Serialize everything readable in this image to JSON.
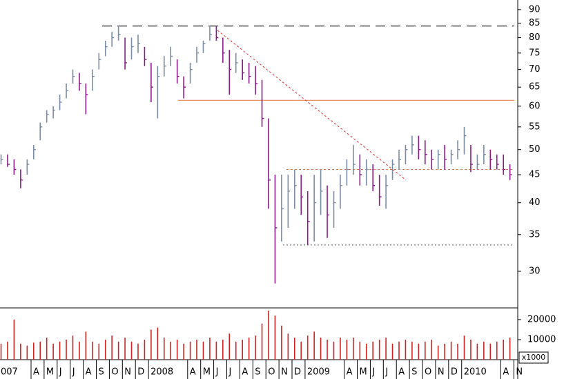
{
  "chart_data": {
    "type": "ohlc",
    "log_scale": true,
    "x": [
      0.7,
      1.2,
      1.7,
      2.2,
      2.7,
      3.2,
      3.7,
      4.2,
      4.7,
      5.2,
      5.7,
      6.2,
      6.7,
      7.2,
      7.7,
      8.2,
      8.7,
      9.2,
      9.7,
      10.2,
      10.7,
      11.2,
      11.7,
      12.2,
      12.7,
      13.2,
      13.7,
      14.2,
      14.7,
      15.2,
      15.7,
      16.2,
      16.7,
      17.2,
      17.7,
      18.2,
      18.7,
      19.2,
      19.7,
      20.2,
      20.7,
      21.2,
      21.7,
      22.2,
      22.7,
      23.2,
      23.7,
      24.2,
      24.7,
      25.2,
      25.7,
      26.2,
      26.7,
      27.2,
      27.7,
      28.2,
      28.7,
      29.2,
      29.7,
      30.2,
      30.7,
      31.2,
      31.7,
      32.2,
      32.7,
      33.2,
      33.7,
      34.2,
      34.7,
      35.2,
      35.7,
      36.2,
      36.7,
      37.2,
      37.7,
      38.2,
      38.7,
      39.2,
      39.7
    ],
    "high": [
      49,
      49,
      48,
      46,
      48,
      51,
      56,
      59,
      60,
      63,
      66,
      70,
      69,
      66,
      70,
      75,
      79,
      82,
      84,
      80,
      80,
      81,
      77,
      72,
      71,
      74,
      77,
      73,
      68,
      72,
      77,
      79,
      84,
      84,
      80,
      76,
      75,
      73,
      72,
      71,
      67,
      57,
      45,
      45,
      45,
      46,
      45,
      42,
      45,
      46,
      43,
      42,
      45,
      48,
      51,
      49,
      48,
      47,
      45,
      45,
      48,
      50,
      51,
      53,
      53,
      52,
      50,
      50,
      51,
      50,
      52,
      55,
      51,
      49,
      51,
      50,
      49,
      49,
      47
    ],
    "low": [
      47,
      46.5,
      45,
      42.5,
      45,
      48,
      52,
      56,
      57,
      59,
      62,
      66,
      64,
      58,
      64,
      70,
      74,
      77,
      79,
      70,
      73,
      75,
      71,
      61,
      57,
      68,
      71,
      66,
      62,
      66,
      72,
      75,
      79,
      79,
      72,
      63,
      69,
      67,
      66,
      63,
      55,
      39,
      28.5,
      34,
      36,
      39,
      38,
      33.5,
      34,
      38,
      34.5,
      36,
      39,
      43,
      45,
      43,
      43,
      42,
      39.5,
      39,
      44,
      46,
      47,
      49,
      48,
      47,
      46,
      46,
      46,
      47,
      48,
      49,
      45.5,
      46,
      47,
      46,
      46,
      45,
      44
    ],
    "close": [
      48,
      47,
      46,
      44,
      47,
      50,
      55,
      58,
      59,
      61,
      64,
      68,
      66,
      63,
      68,
      73,
      77,
      80,
      81,
      72,
      77,
      78,
      73,
      65,
      68,
      71,
      74,
      68,
      65,
      70,
      75,
      78,
      81,
      80,
      75,
      70,
      72,
      69,
      68,
      66,
      57,
      44,
      36,
      39,
      42,
      43,
      41,
      37,
      40,
      42,
      38,
      40,
      43,
      46,
      47,
      45,
      46,
      43,
      41,
      43,
      47,
      48,
      50,
      51,
      50,
      49,
      48,
      49,
      48,
      49,
      50,
      53,
      47,
      47,
      49,
      48,
      47,
      46,
      45
    ],
    "volume": [
      8000,
      9000,
      20000,
      8000,
      7000,
      8500,
      9000,
      11000,
      8000,
      9000,
      10000,
      12000,
      9000,
      14000,
      9000,
      8000,
      10000,
      12000,
      9000,
      11000,
      9000,
      8000,
      10000,
      15000,
      16000,
      11000,
      9000,
      10000,
      8000,
      9000,
      10000,
      9000,
      11000,
      9000,
      10000,
      13000,
      9000,
      10000,
      11000,
      12000,
      18000,
      24500,
      22000,
      17000,
      13000,
      11000,
      9000,
      12000,
      14000,
      11000,
      10000,
      9000,
      11000,
      10000,
      11000,
      9000,
      8000,
      9000,
      10000,
      11000,
      8000,
      9000,
      10000,
      9000,
      8000,
      9000,
      10000,
      7000,
      8000,
      9000,
      8000,
      12000,
      10000,
      8000,
      9000,
      8000,
      9000,
      10000,
      11000
    ],
    "up_color": "#7a8ca3",
    "down_color": "#8b1a8b",
    "volume_color": "#cc2222",
    "xlim": [
      0.62,
      40.3
    ],
    "ylim": [
      25.8,
      93.7
    ],
    "yticks": [
      30,
      35,
      40,
      45,
      50,
      55,
      60,
      65,
      70,
      75,
      80,
      85,
      90
    ],
    "volume_ylim": [
      0,
      25500
    ],
    "volume_yticks": [
      10000,
      20000
    ],
    "volume_unit_label": "x1000",
    "xticks": [
      {
        "value": 0,
        "label": "007"
      },
      {
        "value": 3,
        "label": "A"
      },
      {
        "value": 4,
        "label": "M"
      },
      {
        "value": 5,
        "label": "J"
      },
      {
        "value": 6,
        "label": "J"
      },
      {
        "value": 7,
        "label": "A"
      },
      {
        "value": 8,
        "label": "S"
      },
      {
        "value": 9,
        "label": "O"
      },
      {
        "value": 10,
        "label": "N"
      },
      {
        "value": 11,
        "label": "D"
      },
      {
        "value": 12,
        "label": "2008"
      },
      {
        "value": 15,
        "label": "A"
      },
      {
        "value": 16,
        "label": "M"
      },
      {
        "value": 17,
        "label": "J"
      },
      {
        "value": 18,
        "label": "J"
      },
      {
        "value": 19,
        "label": "A"
      },
      {
        "value": 20,
        "label": "S"
      },
      {
        "value": 21,
        "label": "O"
      },
      {
        "value": 22,
        "label": "N"
      },
      {
        "value": 23,
        "label": "D"
      },
      {
        "value": 24,
        "label": "2009"
      },
      {
        "value": 27,
        "label": "A"
      },
      {
        "value": 28,
        "label": "M"
      },
      {
        "value": 29,
        "label": "J"
      },
      {
        "value": 30,
        "label": "J"
      },
      {
        "value": 31,
        "label": "A"
      },
      {
        "value": 32,
        "label": "S"
      },
      {
        "value": 33,
        "label": "O"
      },
      {
        "value": 34,
        "label": "N"
      },
      {
        "value": 35,
        "label": "D"
      },
      {
        "value": 36,
        "label": "2010"
      },
      {
        "value": 39,
        "label": "A"
      },
      {
        "value": 40,
        "label": "N"
      }
    ],
    "lines": [
      {
        "x": [
          8.45,
          40.04
        ],
        "y": [
          84,
          84
        ],
        "color": "#000000",
        "dash": "14,8"
      },
      {
        "x": [
          14.27,
          40.04
        ],
        "y": [
          61.5,
          61.5
        ],
        "color": "#e07040",
        "dash": "none"
      },
      {
        "x": [
          17.29,
          31.73
        ],
        "y": [
          82.5,
          44
        ],
        "color": "#e03030",
        "dash": "3,3"
      },
      {
        "x": [
          22.58,
          40.04
        ],
        "y": [
          46,
          46
        ],
        "color": "#e07040",
        "dash": "3,3"
      },
      {
        "x": [
          22.31,
          40.04
        ],
        "y": [
          33.5,
          33.5
        ],
        "color": "#555555",
        "dash": "2,3"
      }
    ]
  }
}
